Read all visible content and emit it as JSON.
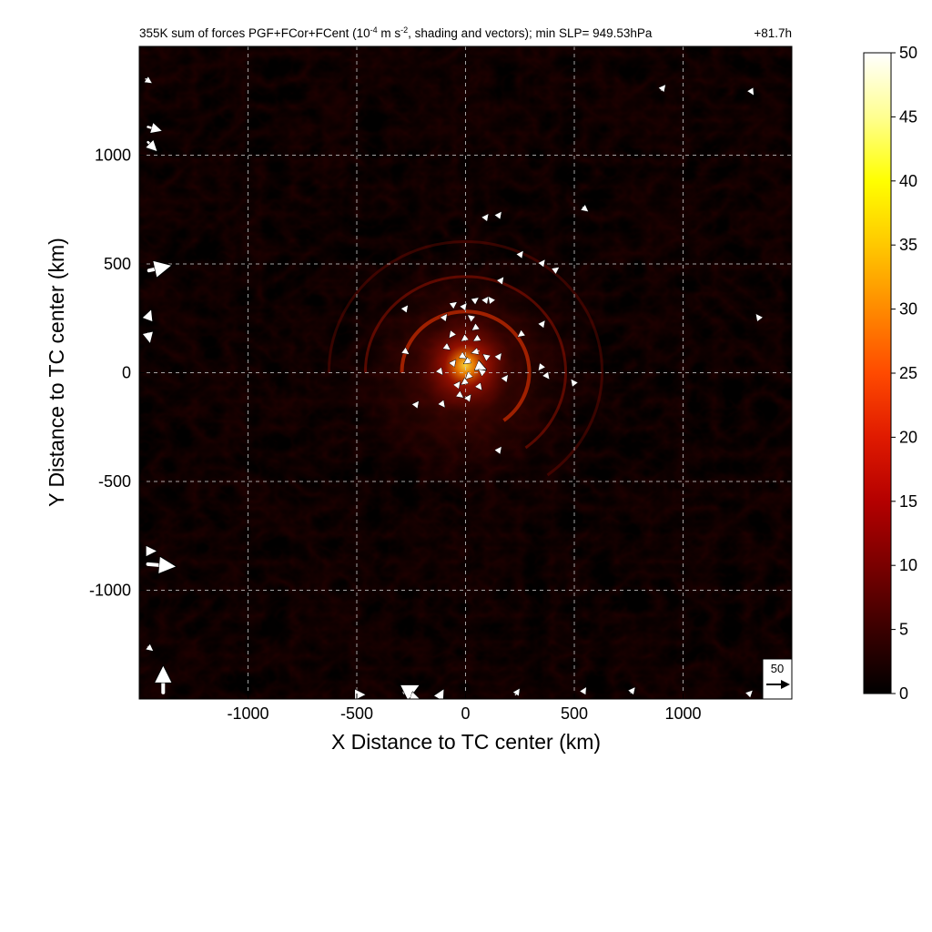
{
  "chart_data": {
    "type": "heatmap",
    "title": {
      "prefix": "355K sum of forces PGF+FCor+FCent (10",
      "exp1": "-4",
      "mid": " m s",
      "exp2": "-2",
      "suffix": ", shading and vectors); min SLP= 949.53hPa",
      "time": "+81.7h"
    },
    "xlabel": "X Distance to TC center (km)",
    "ylabel": "Y Distance to TC center (km)",
    "xlim": [
      -1500,
      1500
    ],
    "ylim": [
      -1500,
      1500
    ],
    "xticks": [
      -1000,
      -500,
      0,
      500,
      1000
    ],
    "yticks": [
      -1000,
      -500,
      0,
      500,
      1000
    ],
    "xtick_labels": [
      "-1000",
      "-500",
      "0",
      "500",
      "1000"
    ],
    "ytick_labels": [
      "-1000",
      "-500",
      "0",
      "500",
      "1000"
    ],
    "grid": true,
    "colorbar": {
      "min": 0,
      "max": 50,
      "ticks": [
        0,
        5,
        10,
        15,
        20,
        25,
        30,
        35,
        40,
        45,
        50
      ],
      "tick_labels": [
        "0",
        "5",
        "10",
        "15",
        "20",
        "25",
        "30",
        "35",
        "40",
        "45",
        "50"
      ],
      "colors": [
        "#000000",
        "#3a0000",
        "#7a0000",
        "#b40000",
        "#e01a00",
        "#ff4a00",
        "#ff8a00",
        "#ffc800",
        "#ffff00",
        "#ffff90",
        "#ffffff"
      ]
    },
    "reference_vector": {
      "label": "50",
      "magnitude": 50
    },
    "center_min_km": [
      0,
      0
    ],
    "vectors": [
      {
        "x": -1470,
        "y": 1350,
        "u": 12,
        "v": -8
      },
      {
        "x": -1460,
        "y": 1130,
        "u": 28,
        "v": -8
      },
      {
        "x": -1460,
        "y": 1060,
        "u": 18,
        "v": -18
      },
      {
        "x": -1455,
        "y": 470,
        "u": 45,
        "v": 10
      },
      {
        "x": -1460,
        "y": 250,
        "u": 6,
        "v": 16
      },
      {
        "x": -1460,
        "y": 180,
        "u": 4,
        "v": -18
      },
      {
        "x": -1460,
        "y": -880,
        "u": 58,
        "v": -5
      },
      {
        "x": -1460,
        "y": -820,
        "u": 16,
        "v": 0
      },
      {
        "x": -1390,
        "y": -1470,
        "u": 0,
        "v": 55
      },
      {
        "x": -1460,
        "y": -1260,
        "u": 10,
        "v": -8
      },
      {
        "x": -500,
        "y": -1480,
        "u": 16,
        "v": 0
      },
      {
        "x": -280,
        "y": -1470,
        "u": 28,
        "v": 14
      },
      {
        "x": -250,
        "y": -1490,
        "u": 18,
        "v": -6
      },
      {
        "x": -120,
        "y": -1490,
        "u": 8,
        "v": 14
      },
      {
        "x": 230,
        "y": -1480,
        "u": 8,
        "v": 12
      },
      {
        "x": 540,
        "y": -1470,
        "u": 6,
        "v": 10
      },
      {
        "x": 760,
        "y": -1470,
        "u": 8,
        "v": 10
      },
      {
        "x": 1300,
        "y": -1480,
        "u": 8,
        "v": 8
      },
      {
        "x": 900,
        "y": 1300,
        "u": 8,
        "v": 10
      },
      {
        "x": 1310,
        "y": 1300,
        "u": 6,
        "v": -10
      },
      {
        "x": 540,
        "y": 760,
        "u": 10,
        "v": -8
      },
      {
        "x": 90,
        "y": 710,
        "u": 6,
        "v": 8
      },
      {
        "x": 150,
        "y": 720,
        "u": 6,
        "v": 8
      },
      {
        "x": 250,
        "y": 540,
        "u": 6,
        "v": 8
      },
      {
        "x": 350,
        "y": 500,
        "u": 6,
        "v": 8
      },
      {
        "x": 410,
        "y": 470,
        "u": 8,
        "v": 6
      },
      {
        "x": 160,
        "y": 420,
        "u": 6,
        "v": 8
      },
      {
        "x": 40,
        "y": 330,
        "u": 8,
        "v": 6
      },
      {
        "x": 90,
        "y": 330,
        "u": 6,
        "v": 8
      },
      {
        "x": -10,
        "y": 300,
        "u": 6,
        "v": 8
      },
      {
        "x": -60,
        "y": 310,
        "u": 8,
        "v": 6
      },
      {
        "x": 120,
        "y": 330,
        "u": -6,
        "v": 8
      },
      {
        "x": -280,
        "y": 290,
        "u": 6,
        "v": 8
      },
      {
        "x": -100,
        "y": 250,
        "u": 6,
        "v": 8
      },
      {
        "x": 30,
        "y": 250,
        "u": -8,
        "v": 6
      },
      {
        "x": 50,
        "y": 210,
        "u": -8,
        "v": -6
      },
      {
        "x": -60,
        "y": 180,
        "u": -6,
        "v": -8
      },
      {
        "x": 0,
        "y": 160,
        "u": -8,
        "v": -6
      },
      {
        "x": 60,
        "y": 160,
        "u": -10,
        "v": -6
      },
      {
        "x": 260,
        "y": 180,
        "u": -8,
        "v": -6
      },
      {
        "x": 350,
        "y": 220,
        "u": 6,
        "v": 8
      },
      {
        "x": -280,
        "y": 100,
        "u": 8,
        "v": -6
      },
      {
        "x": -90,
        "y": 120,
        "u": 8,
        "v": -6
      },
      {
        "x": -20,
        "y": 80,
        "u": 10,
        "v": -6
      },
      {
        "x": 20,
        "y": 60,
        "u": -12,
        "v": -8
      },
      {
        "x": 60,
        "y": 100,
        "u": -14,
        "v": -4
      },
      {
        "x": 100,
        "y": 70,
        "u": -8,
        "v": 6
      },
      {
        "x": -60,
        "y": 40,
        "u": 6,
        "v": 8
      },
      {
        "x": 60,
        "y": 30,
        "u": 14,
        "v": -6
      },
      {
        "x": -120,
        "y": 10,
        "u": 6,
        "v": -8
      },
      {
        "x": 20,
        "y": -10,
        "u": -8,
        "v": -8
      },
      {
        "x": 80,
        "y": 0,
        "u": -8,
        "v": 6
      },
      {
        "x": 150,
        "y": 70,
        "u": 6,
        "v": 8
      },
      {
        "x": 350,
        "y": 30,
        "u": -6,
        "v": -8
      },
      {
        "x": 370,
        "y": -10,
        "u": 6,
        "v": -8
      },
      {
        "x": -40,
        "y": -60,
        "u": 6,
        "v": 8
      },
      {
        "x": 0,
        "y": -40,
        "u": -8,
        "v": -6
      },
      {
        "x": 60,
        "y": -60,
        "u": 6,
        "v": -8
      },
      {
        "x": 180,
        "y": -30,
        "u": 6,
        "v": 8
      },
      {
        "x": -30,
        "y": -100,
        "u": 8,
        "v": -6
      },
      {
        "x": 10,
        "y": -120,
        "u": 6,
        "v": 8
      },
      {
        "x": -230,
        "y": -150,
        "u": 6,
        "v": 8
      },
      {
        "x": -110,
        "y": -140,
        "u": 6,
        "v": -8
      },
      {
        "x": 500,
        "y": -50,
        "u": -6,
        "v": 8
      },
      {
        "x": 150,
        "y": -360,
        "u": 6,
        "v": 8
      },
      {
        "x": 1350,
        "y": 250,
        "u": -6,
        "v": 8
      }
    ]
  }
}
